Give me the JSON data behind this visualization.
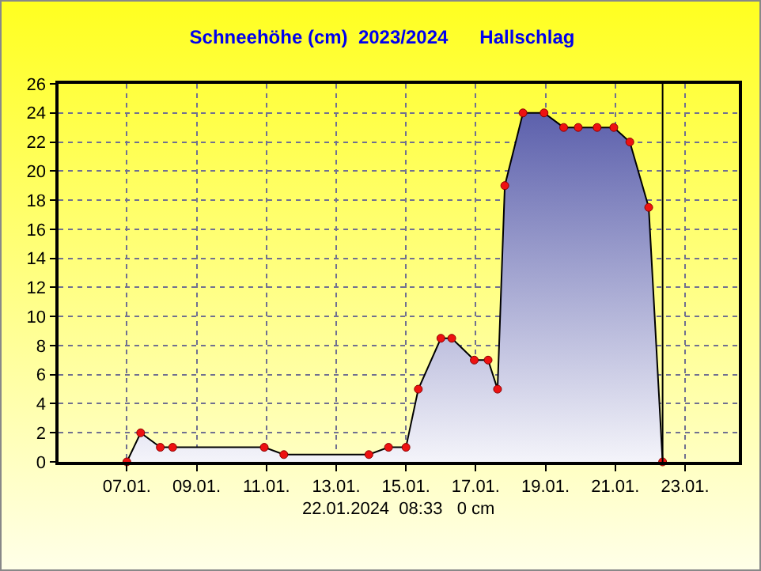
{
  "chart_data": {
    "type": "area",
    "title": "Schneehöhe (cm)  2023/2024      Hallschlag",
    "x": [
      "2024-01-07T00:00",
      "2024-01-07T09:30",
      "2024-01-07T23:00",
      "2024-01-08T07:30",
      "2024-01-10T22:30",
      "2024-01-11T12:00",
      "2024-01-13T22:30",
      "2024-01-14T12:00",
      "2024-01-15T00:00",
      "2024-01-15T08:30",
      "2024-01-16T00:00",
      "2024-01-16T07:30",
      "2024-01-16T23:00",
      "2024-01-17T08:30",
      "2024-01-17T15:00",
      "2024-01-17T20:00",
      "2024-01-18T08:30",
      "2024-01-18T23:00",
      "2024-01-19T12:30",
      "2024-01-19T22:30",
      "2024-01-20T11:30",
      "2024-01-20T23:00",
      "2024-01-21T10:00",
      "2024-01-21T23:00",
      "2024-01-22T08:33"
    ],
    "series": [
      {
        "color": "#000000",
        "values": [
          0,
          2,
          1,
          1,
          1,
          0.5,
          0.5,
          1,
          1,
          5,
          8.5,
          8.5,
          7,
          7,
          5,
          19,
          24,
          24,
          23,
          23,
          23,
          23,
          22,
          17.5,
          0
        ]
      }
    ],
    "xlim": [
      "2024-01-05T01:00",
      "2024-01-24T13:00"
    ],
    "xticks": [
      {
        "value": "2024-01-07",
        "label": "07.01."
      },
      {
        "value": "2024-01-09",
        "label": "09.01."
      },
      {
        "value": "2024-01-11",
        "label": "11.01."
      },
      {
        "value": "2024-01-13",
        "label": "13.01."
      },
      {
        "value": "2024-01-15",
        "label": "15.01."
      },
      {
        "value": "2024-01-17",
        "label": "17.01."
      },
      {
        "value": "2024-01-19",
        "label": "19.01."
      },
      {
        "value": "2024-01-21",
        "label": "21.01."
      },
      {
        "value": "2024-01-23",
        "label": "23.01."
      }
    ],
    "ylim": [
      0,
      26
    ],
    "yticks": [
      0,
      2,
      4,
      6,
      8,
      10,
      12,
      14,
      16,
      18,
      20,
      22,
      24,
      26
    ],
    "grid": true,
    "marker": "circle",
    "ref_lines": [
      {
        "axis": "x",
        "value": "2024-01-22T08:33",
        "label": null,
        "color": "#000000"
      }
    ],
    "annotations": [
      "22.01.2024  08:33   0 cm"
    ]
  }
}
